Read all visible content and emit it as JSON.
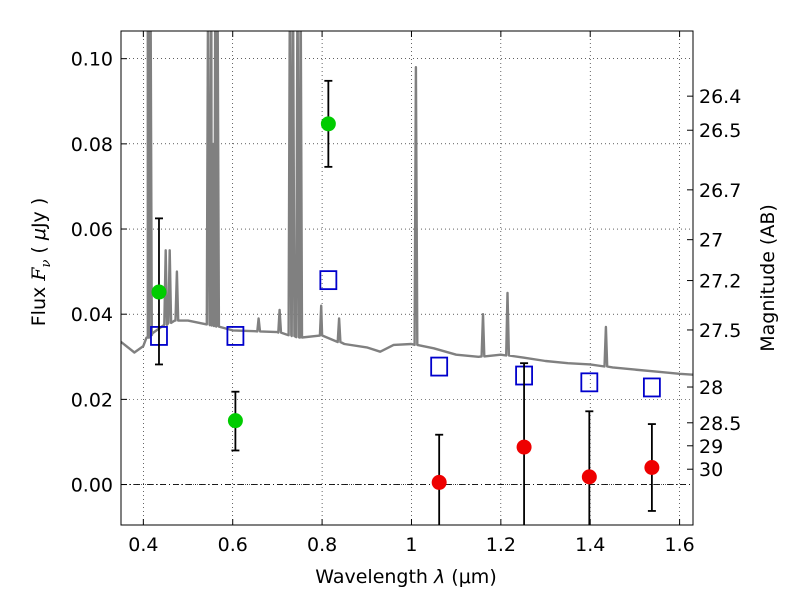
{
  "chart_data": {
    "type": "scatter",
    "xlabel": "Wavelength  λ (μm)",
    "ylabel": "Flux  F_ν  ( μJy )",
    "ylabel_parts": {
      "prefix": "Flux ",
      "symbol": "F",
      "subscript": "ν",
      "open": " ( ",
      "mu": "μ",
      "unit": "Jy )"
    },
    "xlabel_parts": {
      "text": "Wavelength  ",
      "symbol": "λ",
      "unit": " (μm)"
    },
    "y2label": "Magnitude (AB)",
    "xlim": [
      0.35,
      1.63
    ],
    "ylim": [
      -0.0095,
      0.1065
    ],
    "grid": true,
    "x_ticks": [
      {
        "value": 0.4,
        "label": "0.4"
      },
      {
        "value": 0.6,
        "label": "0.6"
      },
      {
        "value": 0.8,
        "label": "0.8"
      },
      {
        "value": 1.0,
        "label": "1"
      },
      {
        "value": 1.2,
        "label": "1.2"
      },
      {
        "value": 1.4,
        "label": "1.4"
      },
      {
        "value": 1.6,
        "label": "1.6"
      }
    ],
    "y_ticks": [
      {
        "value": 0.0,
        "label": "0.00"
      },
      {
        "value": 0.02,
        "label": "0.02"
      },
      {
        "value": 0.04,
        "label": "0.04"
      },
      {
        "value": 0.06,
        "label": "0.06"
      },
      {
        "value": 0.08,
        "label": "0.08"
      },
      {
        "value": 0.1,
        "label": "0.10"
      }
    ],
    "mag_ticks": [
      {
        "label": "26.4",
        "flux": 0.0912
      },
      {
        "label": "26.5",
        "flux": 0.0832
      },
      {
        "label": "26.7",
        "flux": 0.0692
      },
      {
        "label": "27",
        "flux": 0.0575
      },
      {
        "label": "27.2",
        "flux": 0.0479
      },
      {
        "label": "27.5",
        "flux": 0.0363
      },
      {
        "label": "28",
        "flux": 0.0229
      },
      {
        "label": "28.5",
        "flux": 0.0145
      },
      {
        "label": "29",
        "flux": 0.0091
      },
      {
        "label": "30",
        "flux": 0.0036
      }
    ],
    "series": [
      {
        "kind": "model_spectrum",
        "color": "#808080",
        "continuum": [
          [
            0.35,
            0.0335
          ],
          [
            0.38,
            0.031
          ],
          [
            0.4,
            0.0325
          ],
          [
            0.41,
            0.0345
          ],
          [
            0.42,
            0.0355
          ],
          [
            0.44,
            0.037
          ],
          [
            0.47,
            0.0385
          ],
          [
            0.5,
            0.0385
          ],
          [
            0.55,
            0.0375
          ],
          [
            0.6,
            0.0362
          ],
          [
            0.65,
            0.036
          ],
          [
            0.7,
            0.0358
          ],
          [
            0.75,
            0.0345
          ],
          [
            0.8,
            0.035
          ],
          [
            0.85,
            0.033
          ],
          [
            0.9,
            0.0322
          ],
          [
            0.93,
            0.0312
          ],
          [
            0.96,
            0.0328
          ],
          [
            1.0,
            0.033
          ],
          [
            1.05,
            0.032
          ],
          [
            1.1,
            0.0305
          ],
          [
            1.15,
            0.03
          ],
          [
            1.2,
            0.0305
          ],
          [
            1.25,
            0.0298
          ],
          [
            1.3,
            0.029
          ],
          [
            1.35,
            0.0285
          ],
          [
            1.4,
            0.0282
          ],
          [
            1.45,
            0.0275
          ],
          [
            1.5,
            0.027
          ],
          [
            1.55,
            0.0265
          ],
          [
            1.6,
            0.026
          ],
          [
            1.63,
            0.0258
          ]
        ],
        "lines": [
          [
            0.41,
            0.12
          ],
          [
            0.416,
            0.12
          ],
          [
            0.45,
            0.055
          ],
          [
            0.459,
            0.055
          ],
          [
            0.475,
            0.05
          ],
          [
            0.545,
            0.12
          ],
          [
            0.552,
            0.12
          ],
          [
            0.556,
            0.08
          ],
          [
            0.561,
            0.12
          ],
          [
            0.566,
            0.12
          ],
          [
            0.658,
            0.039
          ],
          [
            0.705,
            0.041
          ],
          [
            0.728,
            0.12
          ],
          [
            0.735,
            0.12
          ],
          [
            0.745,
            0.12
          ],
          [
            0.752,
            0.12
          ],
          [
            0.798,
            0.042
          ],
          [
            0.838,
            0.039
          ],
          [
            1.01,
            0.098
          ],
          [
            1.16,
            0.04
          ],
          [
            1.215,
            0.045
          ],
          [
            1.435,
            0.037
          ]
        ]
      },
      {
        "kind": "model_photometry",
        "marker": "open-square",
        "color": "#0000cc",
        "points": [
          {
            "x": 0.435,
            "y": 0.0349
          },
          {
            "x": 0.606,
            "y": 0.0349
          },
          {
            "x": 0.814,
            "y": 0.048
          },
          {
            "x": 1.062,
            "y": 0.0277
          },
          {
            "x": 1.252,
            "y": 0.0256
          },
          {
            "x": 1.398,
            "y": 0.024
          },
          {
            "x": 1.538,
            "y": 0.0228
          }
        ]
      },
      {
        "kind": "observed_optical",
        "marker": "filled-circle",
        "color": "#00cc00",
        "points": [
          {
            "x": 0.435,
            "y": 0.0452,
            "err_lo": 0.0282,
            "err_hi": 0.0625
          },
          {
            "x": 0.606,
            "y": 0.015,
            "err_lo": 0.008,
            "err_hi": 0.0218
          },
          {
            "x": 0.814,
            "y": 0.0847,
            "err_lo": 0.0746,
            "err_hi": 0.0948
          }
        ]
      },
      {
        "kind": "observed_nir",
        "marker": "filled-circle",
        "color": "#ee0000",
        "points": [
          {
            "x": 1.062,
            "y": 0.0005,
            "err_lo": -0.011,
            "err_hi": 0.0117
          },
          {
            "x": 1.252,
            "y": 0.0088,
            "err_lo": -0.011,
            "err_hi": 0.0285
          },
          {
            "x": 1.398,
            "y": 0.0018,
            "err_lo": -0.011,
            "err_hi": 0.0172
          },
          {
            "x": 1.538,
            "y": 0.004,
            "err_lo": -0.0062,
            "err_hi": 0.0142
          }
        ]
      }
    ]
  }
}
